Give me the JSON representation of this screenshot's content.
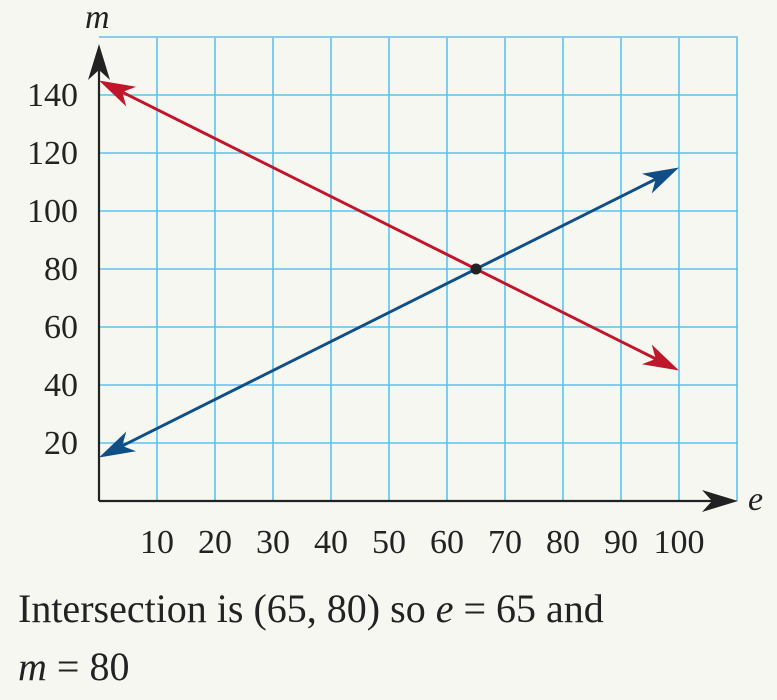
{
  "chart_data": {
    "type": "line",
    "xlabel": "e",
    "ylabel": "m",
    "xlim": [
      0,
      110
    ],
    "ylim": [
      0,
      160
    ],
    "grid": true,
    "x_ticks": [
      10,
      20,
      30,
      40,
      50,
      60,
      70,
      80,
      90,
      100
    ],
    "y_ticks": [
      20,
      40,
      60,
      80,
      100,
      120,
      140
    ],
    "series": [
      {
        "color": "#c0162b",
        "x": [
          0,
          100
        ],
        "y": [
          145,
          45
        ],
        "arrows": "both"
      },
      {
        "color": "#0f4f86",
        "x": [
          0,
          100
        ],
        "y": [
          15,
          115
        ],
        "arrows": "both"
      }
    ],
    "points": [
      {
        "x": 65,
        "y": 80,
        "color": "#222222"
      }
    ]
  },
  "caption": {
    "part1": "Intersection is (65, 80) so ",
    "var_e": "e",
    "part2": " = 65 and",
    "var_m": "m",
    "part3": " = 80"
  },
  "colors": {
    "grid": "#5bc3ec",
    "axis": "#222222",
    "background": "#f7f7f2"
  }
}
